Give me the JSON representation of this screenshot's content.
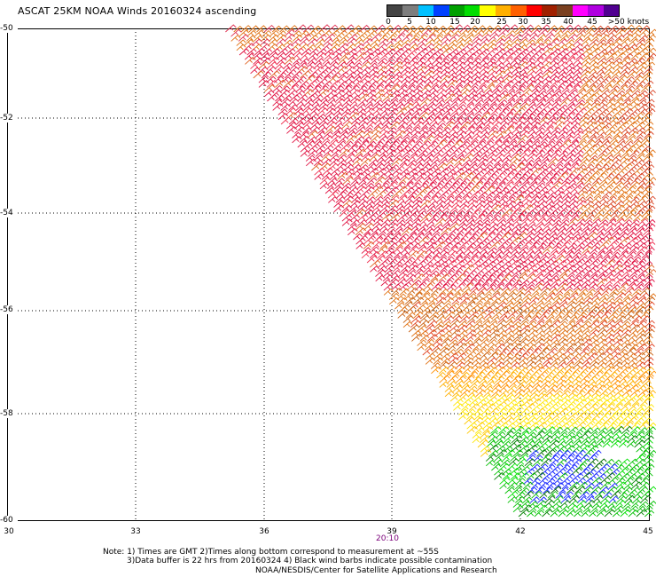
{
  "title": "ASCAT 25KM NOAA Winds 20160324 ascending",
  "scale": {
    "colors": [
      "#444444",
      "#7d7d7d",
      "#00c0ff",
      "#0040ff",
      "#00a000",
      "#00dd00",
      "#ffff00",
      "#ffb000",
      "#ff6000",
      "#ff0000",
      "#a02000",
      "#7a4020",
      "#ff00ff",
      "#b000e0",
      "#500090"
    ],
    "labels": [
      "0",
      "5",
      "10",
      "15",
      "20",
      "25",
      "30",
      "35",
      "40",
      "45",
      ">50 knots"
    ]
  },
  "axes": {
    "x_labels": [
      "30",
      "33",
      "36",
      "39",
      "42",
      "45"
    ],
    "y_labels": [
      "-50",
      "-52",
      "-54",
      "-56",
      "-58",
      "-60"
    ],
    "time_label": "20:10"
  },
  "notes": {
    "line1": "Note: 1) Times are GMT 2)Times along bottom correspond to measurement at ~55S",
    "line2": "3)Data buffer is 22 hrs from 20160324 4) Black wind barbs indicate possible contamination",
    "line3": "NOAA/NESDIS/Center for Satellite Applications and Research"
  }
}
